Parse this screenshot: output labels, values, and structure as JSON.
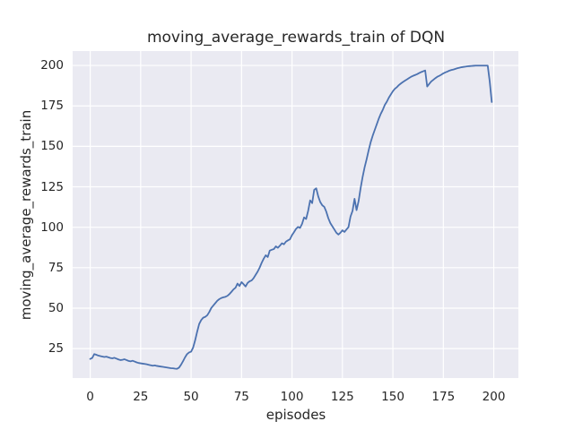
{
  "figure": {
    "title": "moving_average_rewards_train of DQN",
    "background_color": "#ffffff"
  },
  "axes": {
    "xlabel": "episodes",
    "ylabel": "moving_average_rewards_train",
    "x_ticks": [
      0,
      25,
      50,
      75,
      100,
      125,
      150,
      175,
      200
    ],
    "y_ticks": [
      25,
      50,
      75,
      100,
      125,
      150,
      175,
      200
    ],
    "plot_bg_color": "#eaeaf2",
    "grid_color": "#ffffff",
    "text_color": "#262626"
  },
  "chart_data": {
    "type": "line",
    "title": "moving_average_rewards_train of DQN",
    "xlabel": "episodes",
    "ylabel": "moving_average_rewards_train",
    "line_color": "#4c72b0",
    "grid": true,
    "legend": false,
    "xlim": [
      -8.7,
      212.2
    ],
    "ylim": [
      6.8,
      208.9
    ],
    "x_start": 0,
    "x_step": 1,
    "values": [
      18.6,
      19.2,
      21.6,
      21.2,
      20.7,
      20.4,
      20.1,
      19.8,
      20.0,
      19.6,
      19.2,
      19.0,
      19.3,
      18.8,
      18.3,
      17.9,
      18.1,
      18.4,
      17.9,
      17.4,
      17.1,
      17.5,
      17.0,
      16.5,
      16.1,
      15.9,
      15.7,
      15.5,
      15.3,
      15.0,
      14.7,
      14.4,
      14.6,
      14.3,
      14.1,
      13.9,
      13.7,
      13.5,
      13.3,
      13.1,
      12.9,
      12.8,
      12.6,
      12.5,
      13.2,
      15.0,
      17.2,
      19.6,
      21.6,
      22.6,
      23.1,
      25.6,
      30.1,
      35.4,
      40.2,
      42.6,
      44.1,
      44.6,
      45.6,
      47.6,
      50.1,
      51.6,
      53.1,
      54.6,
      55.6,
      56.3,
      56.7,
      57.0,
      57.6,
      58.7,
      60.1,
      61.6,
      62.6,
      65.2,
      63.7,
      66.1,
      64.8,
      63.4,
      65.6,
      66.6,
      67.1,
      68.6,
      70.6,
      72.6,
      75.1,
      78.1,
      80.6,
      82.7,
      81.6,
      85.6,
      86.1,
      86.5,
      88.2,
      87.3,
      88.6,
      90.1,
      89.5,
      91.1,
      91.9,
      92.6,
      95.1,
      97.0,
      99.0,
      100.2,
      99.6,
      102.1,
      106.1,
      105.1,
      110.1,
      116.6,
      114.9,
      123.1,
      124.1,
      119.1,
      115.6,
      113.6,
      112.6,
      109.6,
      105.6,
      102.6,
      100.6,
      98.6,
      96.6,
      95.5,
      96.6,
      98.1,
      97.1,
      98.6,
      100.1,
      106.6,
      110.1,
      117.6,
      110.6,
      116.1,
      124.1,
      131.1,
      137.1,
      142.1,
      147.6,
      152.6,
      156.6,
      160.1,
      163.6,
      167.1,
      170.1,
      172.6,
      175.6,
      177.6,
      180.1,
      182.1,
      184.1,
      185.6,
      186.6,
      187.9,
      188.9,
      189.8,
      190.6,
      191.4,
      192.2,
      193.0,
      193.6,
      194.1,
      194.6,
      195.3,
      195.9,
      196.4,
      196.9,
      187.0,
      188.6,
      190.1,
      191.1,
      192.1,
      193.0,
      193.6,
      194.3,
      195.1,
      195.7,
      196.2,
      196.8,
      197.2,
      197.5,
      197.9,
      198.3,
      198.6,
      198.9,
      199.1,
      199.3,
      199.5,
      199.6,
      199.7,
      199.8,
      199.9,
      199.9,
      199.9,
      199.9,
      199.9,
      199.9,
      199.9,
      190.0,
      177.4
    ]
  }
}
